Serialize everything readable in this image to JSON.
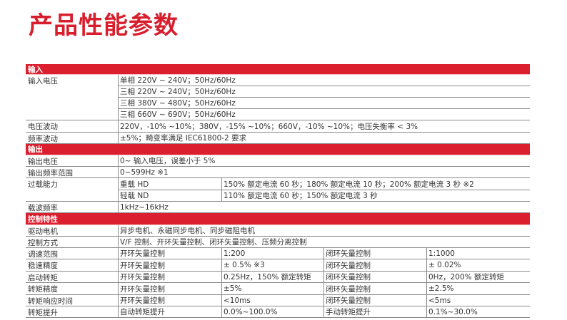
{
  "title": "产品性能参数",
  "colors": {
    "accent": "#dc1f2e",
    "text": "#333333"
  },
  "sections": [
    {
      "header": "输入",
      "rows": [
        {
          "label": "输入电压",
          "rowspan": 4,
          "cells": [
            {
              "text": "单相 220V ~ 240V；50Hz/60Hz",
              "span": 4
            }
          ]
        },
        {
          "cells": [
            {
              "text": "三相 220V ~ 240V；50Hz/60Hz",
              "span": 4
            }
          ]
        },
        {
          "cells": [
            {
              "text": "三相 380V ~ 480V；50Hz/60Hz",
              "span": 4
            }
          ]
        },
        {
          "cells": [
            {
              "text": "三相 660V ~ 690V；50Hz/60Hz",
              "span": 4
            }
          ]
        },
        {
          "label": "电压波动",
          "cells": [
            {
              "text": "220V，-10% ~10%；380V，-15% ~10%；660V，-10% ~10%；电压失衡率 < 3%",
              "span": 4
            }
          ]
        },
        {
          "label": "频率波动",
          "cells": [
            {
              "text": "±5%；畸变率满足 IEC61800-2 要求",
              "span": 4
            }
          ]
        }
      ]
    },
    {
      "header": "输出",
      "rows": [
        {
          "label": "输出电压",
          "cells": [
            {
              "text": "0~ 输入电压，误差小于 5%",
              "span": 4
            }
          ]
        },
        {
          "label": "输出频率范围",
          "cells": [
            {
              "text": "0~599Hz ※1",
              "span": 4
            }
          ]
        },
        {
          "label": "过载能力",
          "rowspan": 2,
          "cells": [
            {
              "text": "重载 HD",
              "span": 1
            },
            {
              "text": "150% 额定电流 60 秒；180% 额定电流 10 秒；200% 额定电流 3 秒 ※2",
              "span": 3
            }
          ]
        },
        {
          "cells": [
            {
              "text": "轻载 ND",
              "span": 1
            },
            {
              "text": "110% 额定电流 60 秒；150% 额定电流 3 秒",
              "span": 3
            }
          ]
        },
        {
          "label": "载波频率",
          "cells": [
            {
              "text": "1kHz~16kHz",
              "span": 4
            }
          ]
        }
      ]
    },
    {
      "header": "控制特性",
      "rows": [
        {
          "label": "驱动电机",
          "cells": [
            {
              "text": "异步电机、永磁同步电机、同步磁阻电机",
              "span": 4
            }
          ]
        },
        {
          "label": "控制方式",
          "cells": [
            {
              "text": "V/F 控制、开环矢量控制、闭环矢量控制、压频分离控制",
              "span": 4
            }
          ]
        },
        {
          "label": "调速范围",
          "cells": [
            {
              "text": "开环矢量控制",
              "span": 1
            },
            {
              "text": "1:200",
              "span": 1
            },
            {
              "text": "闭环矢量控制",
              "span": 1
            },
            {
              "text": "1:1000",
              "span": 1
            }
          ]
        },
        {
          "label": "稳速精度",
          "cells": [
            {
              "text": "开环矢量控制",
              "span": 1
            },
            {
              "text": "± 0.5% ※3",
              "span": 1
            },
            {
              "text": "闭环矢量控制",
              "span": 1
            },
            {
              "text": "± 0.02%",
              "span": 1
            }
          ]
        },
        {
          "label": "启动转矩",
          "cells": [
            {
              "text": "开环矢量控制",
              "span": 1
            },
            {
              "text": "0.25Hz，150% 额定转矩",
              "span": 1
            },
            {
              "text": "闭环矢量控制",
              "span": 1
            },
            {
              "text": "0Hz，200% 额定转矩",
              "span": 1
            }
          ]
        },
        {
          "label": "转矩精度",
          "cells": [
            {
              "text": "开环矢量控制",
              "span": 1
            },
            {
              "text": "±5%",
              "span": 1
            },
            {
              "text": "闭环矢量控制",
              "span": 1
            },
            {
              "text": "±2.5%",
              "span": 1
            }
          ]
        },
        {
          "label": "转矩响应时间",
          "cells": [
            {
              "text": "开环矢量控制",
              "span": 1
            },
            {
              "text": "<10ms",
              "span": 1
            },
            {
              "text": "闭环矢量控制",
              "span": 1
            },
            {
              "text": "<5ms",
              "span": 1
            }
          ]
        },
        {
          "label": "转矩提升",
          "cells": [
            {
              "text": "自动转矩提升",
              "span": 1
            },
            {
              "text": "0.0%~100.0%",
              "span": 1
            },
            {
              "text": "手动转矩提升",
              "span": 1
            },
            {
              "text": "0.1%~30.0%",
              "span": 1
            }
          ]
        }
      ]
    }
  ]
}
